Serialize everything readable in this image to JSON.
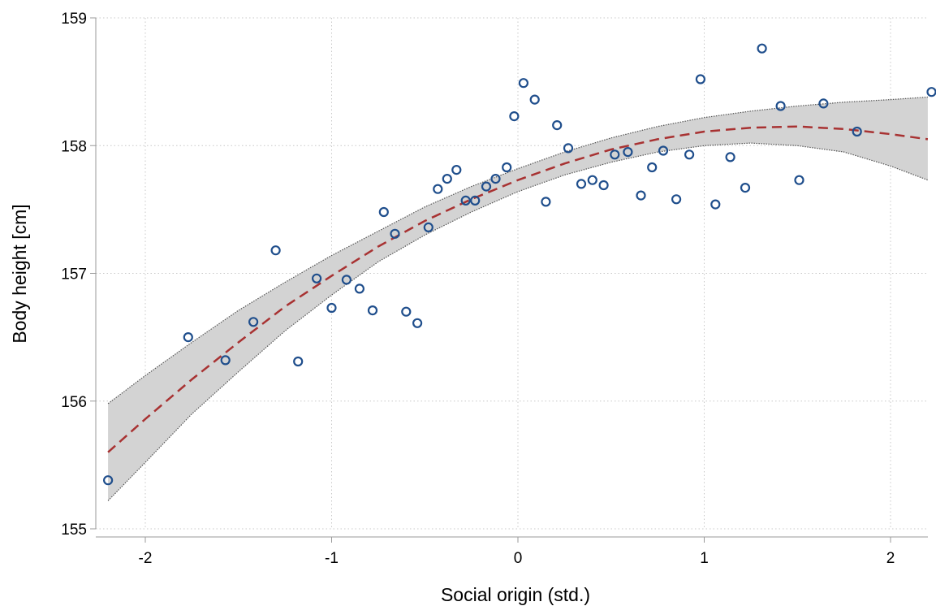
{
  "chart_data": {
    "type": "scatter",
    "title": "",
    "xlabel": "Social origin (std.)",
    "ylabel": "Body height [cm]",
    "xlim": [
      -2.3,
      2.3
    ],
    "ylim": [
      155,
      159
    ],
    "x_ticks": [
      -2,
      -1,
      0,
      1,
      2
    ],
    "y_ticks": [
      155,
      156,
      157,
      158,
      159
    ],
    "grid": true,
    "colors": {
      "points": "#1f4e8c",
      "fit_line": "#a83232",
      "ci_band": "#d3d3d3",
      "ci_border": "#555555",
      "grid": "#c8c8c8"
    },
    "points": [
      {
        "x": -2.2,
        "y": 155.38
      },
      {
        "x": -1.77,
        "y": 156.5
      },
      {
        "x": -1.57,
        "y": 156.32
      },
      {
        "x": -1.42,
        "y": 156.62
      },
      {
        "x": -1.3,
        "y": 157.18
      },
      {
        "x": -1.18,
        "y": 156.31
      },
      {
        "x": -1.08,
        "y": 156.96
      },
      {
        "x": -1.0,
        "y": 156.73
      },
      {
        "x": -0.92,
        "y": 156.95
      },
      {
        "x": -0.85,
        "y": 156.88
      },
      {
        "x": -0.78,
        "y": 156.71
      },
      {
        "x": -0.72,
        "y": 157.48
      },
      {
        "x": -0.66,
        "y": 157.31
      },
      {
        "x": -0.6,
        "y": 156.7
      },
      {
        "x": -0.54,
        "y": 156.61
      },
      {
        "x": -0.48,
        "y": 157.36
      },
      {
        "x": -0.43,
        "y": 157.66
      },
      {
        "x": -0.38,
        "y": 157.74
      },
      {
        "x": -0.33,
        "y": 157.81
      },
      {
        "x": -0.28,
        "y": 157.57
      },
      {
        "x": -0.23,
        "y": 157.57
      },
      {
        "x": -0.17,
        "y": 157.68
      },
      {
        "x": -0.12,
        "y": 157.74
      },
      {
        "x": -0.06,
        "y": 157.83
      },
      {
        "x": -0.02,
        "y": 158.23
      },
      {
        "x": 0.03,
        "y": 158.49
      },
      {
        "x": 0.09,
        "y": 158.36
      },
      {
        "x": 0.15,
        "y": 157.56
      },
      {
        "x": 0.21,
        "y": 158.16
      },
      {
        "x": 0.27,
        "y": 157.98
      },
      {
        "x": 0.34,
        "y": 157.7
      },
      {
        "x": 0.4,
        "y": 157.73
      },
      {
        "x": 0.46,
        "y": 157.69
      },
      {
        "x": 0.52,
        "y": 157.93
      },
      {
        "x": 0.59,
        "y": 157.95
      },
      {
        "x": 0.66,
        "y": 157.61
      },
      {
        "x": 0.72,
        "y": 157.83
      },
      {
        "x": 0.78,
        "y": 157.96
      },
      {
        "x": 0.85,
        "y": 157.58
      },
      {
        "x": 0.92,
        "y": 157.93
      },
      {
        "x": 0.98,
        "y": 158.52
      },
      {
        "x": 1.06,
        "y": 157.54
      },
      {
        "x": 1.14,
        "y": 157.91
      },
      {
        "x": 1.22,
        "y": 157.67
      },
      {
        "x": 1.31,
        "y": 158.76
      },
      {
        "x": 1.41,
        "y": 158.31
      },
      {
        "x": 1.51,
        "y": 157.73
      },
      {
        "x": 1.64,
        "y": 158.33
      },
      {
        "x": 1.82,
        "y": 158.11
      },
      {
        "x": 2.22,
        "y": 158.42
      }
    ],
    "fit": {
      "x": [
        -2.2,
        -2.0,
        -1.75,
        -1.5,
        -1.25,
        -1.0,
        -0.75,
        -0.5,
        -0.25,
        0.0,
        0.25,
        0.5,
        0.75,
        1.0,
        1.25,
        1.5,
        1.75,
        2.0,
        2.2
      ],
      "y": [
        155.6,
        155.86,
        156.17,
        156.46,
        156.74,
        156.98,
        157.21,
        157.41,
        157.58,
        157.73,
        157.86,
        157.97,
        158.05,
        158.11,
        158.14,
        158.15,
        158.13,
        158.09,
        158.05
      ],
      "lower": [
        155.22,
        155.52,
        155.9,
        156.23,
        156.55,
        156.83,
        157.09,
        157.3,
        157.48,
        157.64,
        157.77,
        157.87,
        157.95,
        158.0,
        158.02,
        158.0,
        157.95,
        157.84,
        157.73
      ],
      "upper": [
        155.98,
        156.2,
        156.46,
        156.71,
        156.93,
        157.14,
        157.33,
        157.52,
        157.68,
        157.82,
        157.95,
        158.06,
        158.15,
        158.22,
        158.27,
        158.31,
        158.34,
        158.36,
        158.38
      ]
    }
  }
}
